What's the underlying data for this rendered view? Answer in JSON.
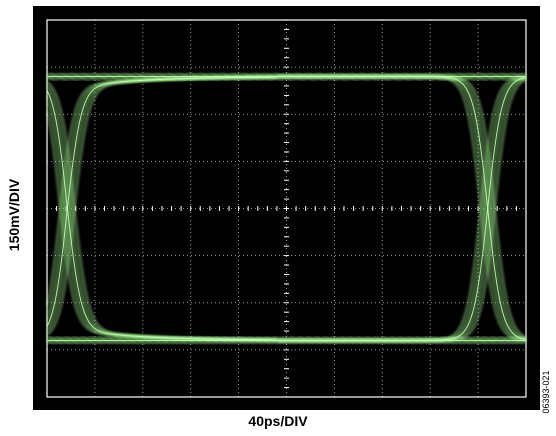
{
  "chart_data": {
    "type": "line",
    "title": "",
    "xlabel": "40ps/DIV",
    "ylabel": "150mV/DIV",
    "x_divisions": 10,
    "y_divisions": 8,
    "x_per_div_ps": 40,
    "y_per_div_mv": 150,
    "xlim": [
      0,
      400
    ],
    "ylim": [
      -600,
      600
    ],
    "grid": true,
    "background": "#000000",
    "grid_color": "#ffffff",
    "trace_color": "#6ee05a",
    "trace_highlight": "#c8ffb8",
    "eye": {
      "high_level_mv": 420,
      "low_level_mv": -420,
      "crossing_times_ps": [
        17,
        368
      ],
      "crossing_level_mv": 0,
      "unit_interval_ps": 351,
      "rise_time_ps": 40
    },
    "figure_id": "06393-021"
  }
}
